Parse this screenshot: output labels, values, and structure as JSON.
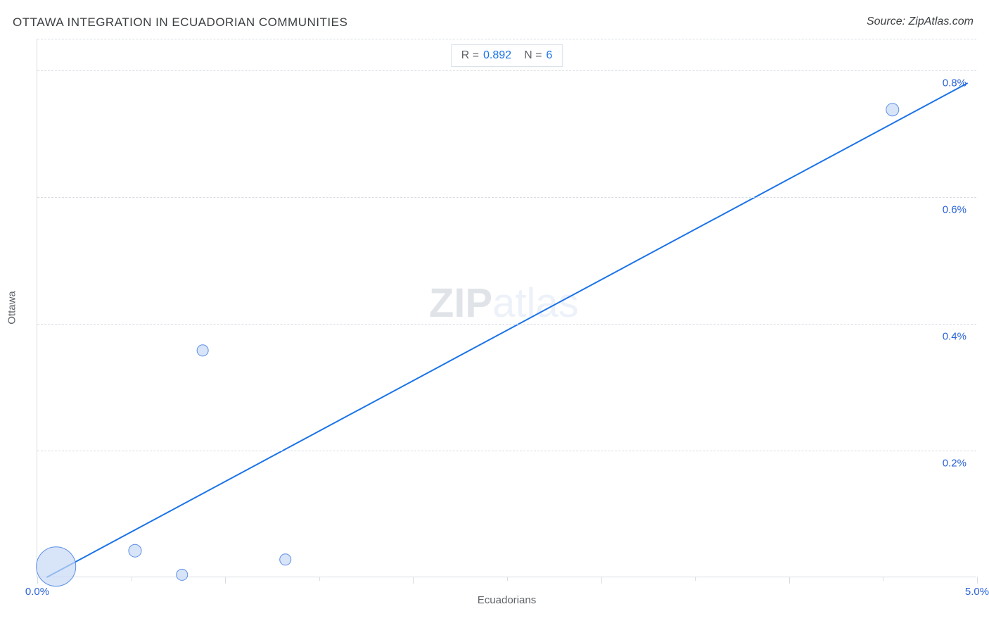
{
  "title": "OTTAWA INTEGRATION IN ECUADORIAN COMMUNITIES",
  "source": "Source: ZipAtlas.com",
  "chart": {
    "type": "scatter",
    "x_axis": {
      "label": "Ecuadorians",
      "min": 0.0,
      "max": 5.0,
      "unit": "%",
      "tick_labels": {
        "start": "0.0%",
        "end": "5.0%"
      },
      "major_ticks": [
        0,
        1,
        2,
        3,
        4,
        5
      ],
      "minor_ticks": [
        0.5,
        1.5,
        2.5,
        3.5,
        4.5
      ],
      "label_color": "#5f6368",
      "label_fontsize": 15,
      "tick_label_color": "#2a62d8",
      "tick_label_fontsize": 15
    },
    "y_axis": {
      "label": "Ottawa",
      "min": 0.0,
      "max": 0.85,
      "unit": "%",
      "grid_values": [
        0.2,
        0.4,
        0.6,
        0.8
      ],
      "tick_labels": [
        "0.2%",
        "0.4%",
        "0.6%",
        "0.8%"
      ],
      "label_color": "#5f6368",
      "label_fontsize": 15,
      "tick_label_color": "#2a62d8",
      "tick_label_fontsize": 15
    },
    "background_color": "#ffffff",
    "grid_color": "#d9dde3",
    "axis_line_color": "#d9dde3",
    "regression_line": {
      "color": "#1a73e8",
      "width": 2,
      "points": {
        "x1": 0.05,
        "y1": 0.0,
        "x2": 4.95,
        "y2": 0.78
      }
    },
    "bubbles": {
      "fill": "#c7d9f5",
      "stroke": "#5b8ee6",
      "stroke_width": 1,
      "fill_opacity": 0.7,
      "items": [
        {
          "x": 0.1,
          "y": 0.017,
          "r": 28
        },
        {
          "x": 0.52,
          "y": 0.042,
          "r": 9
        },
        {
          "x": 0.77,
          "y": 0.004,
          "r": 8
        },
        {
          "x": 0.88,
          "y": 0.358,
          "r": 8
        },
        {
          "x": 1.32,
          "y": 0.028,
          "r": 8
        },
        {
          "x": 4.55,
          "y": 0.738,
          "r": 9
        }
      ]
    },
    "stats_box": {
      "r_label": "R =",
      "r_value": "0.892",
      "n_label": "N =",
      "n_value": "6",
      "border_color": "#dbe2ea",
      "label_color": "#5f6368",
      "value_color": "#1a73e8",
      "fontsize": 16
    },
    "watermark": {
      "zip": "ZIP",
      "atlas": "atlas",
      "zip_color": "#a9b4c0",
      "atlas_color": "#cdd9ee",
      "fontsize": 58
    }
  },
  "title_color": "#3c4043",
  "title_fontsize": 17,
  "source_color": "#3c4043",
  "source_fontsize": 16
}
